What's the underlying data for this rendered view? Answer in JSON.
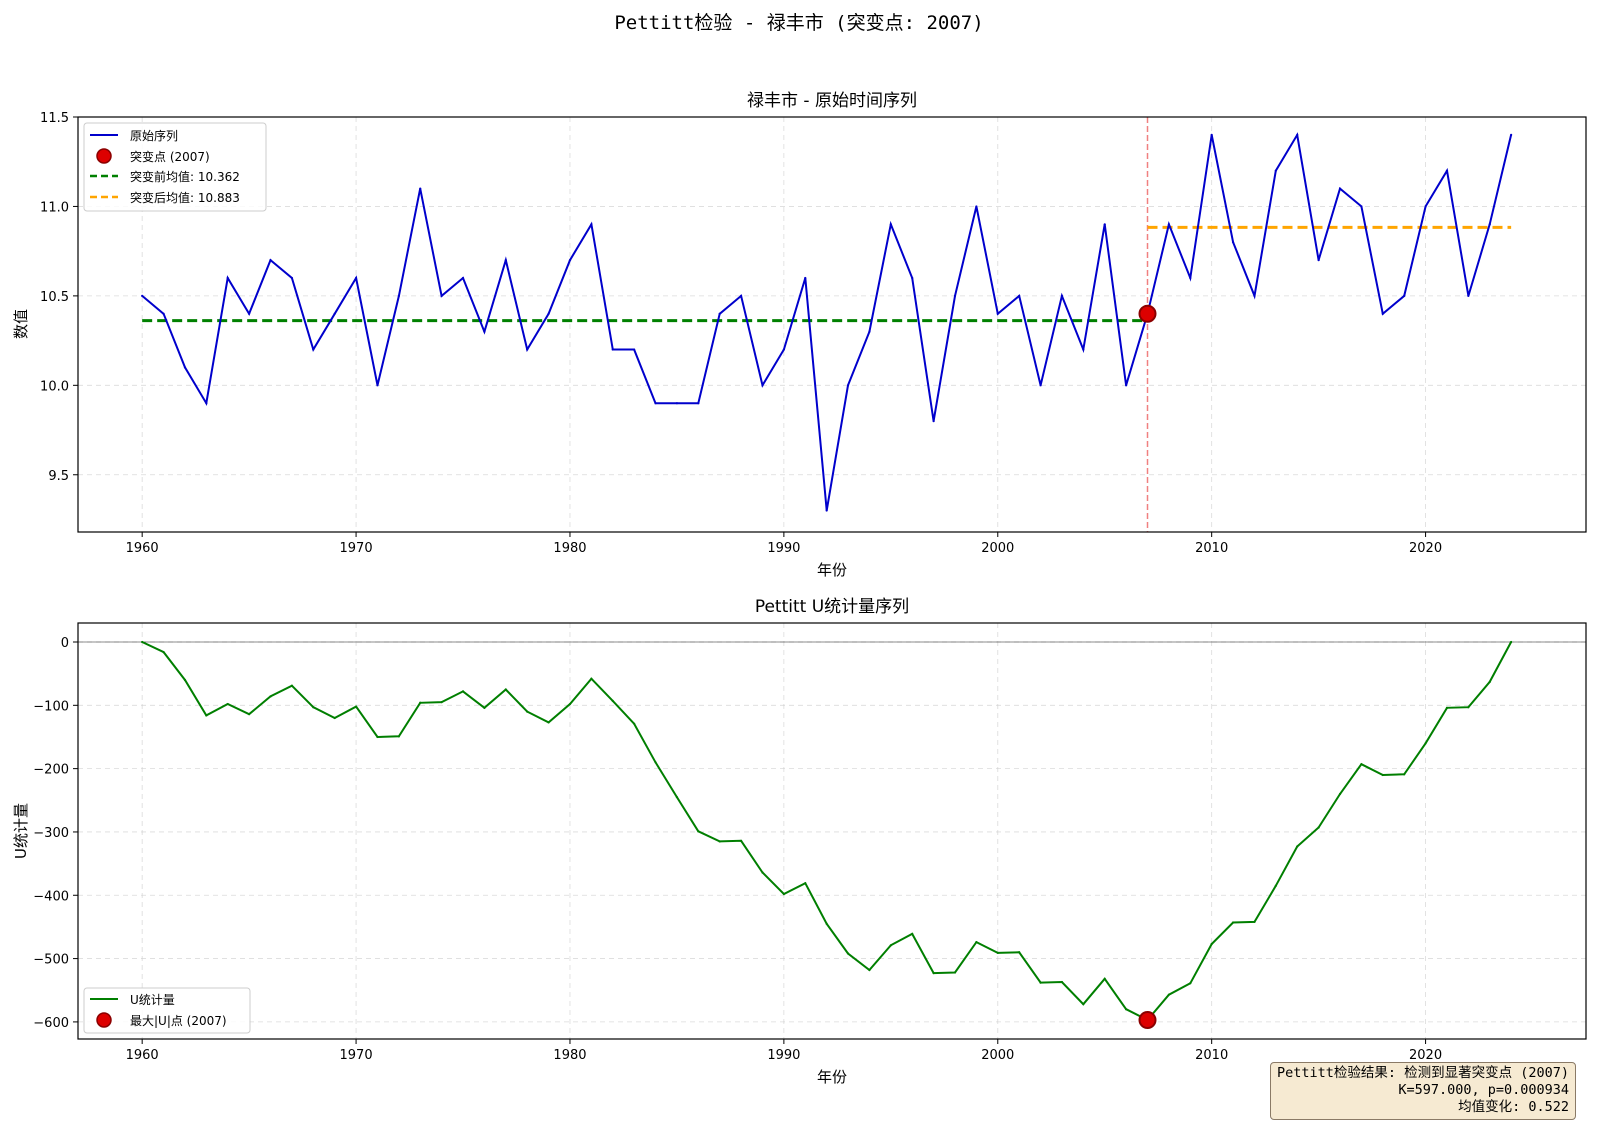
{
  "figure": {
    "suptitle": "Pettitt检验 - 禄丰市 (突变点: 2007)",
    "result_box": {
      "line1": "Pettitt检验结果: 检测到显著突变点 (2007)",
      "line2": "K=597.000, p=0.000934",
      "line3": "均值变化: 0.522"
    }
  },
  "colors": {
    "series": "#0000cc",
    "change_point": "#dd0000",
    "change_point_edge": "#8b0000",
    "mean_before": "#008000",
    "mean_after": "#ffa500",
    "vline": "#f08080",
    "u_line": "#007f00"
  },
  "chart_data": [
    {
      "type": "line",
      "title": "禄丰市 - 原始时间序列",
      "xlabel": "年份",
      "ylabel": "数值",
      "xlim": [
        1957,
        2027.5
      ],
      "ylim": [
        9.18,
        11.5
      ],
      "xticks": [
        1960,
        1970,
        1980,
        1990,
        2000,
        2010,
        2020
      ],
      "yticks": [
        9.5,
        10.0,
        10.5,
        11.0,
        11.5
      ],
      "ytick_labels": [
        "9.5",
        "10.0",
        "10.5",
        "11.0",
        "11.5"
      ],
      "grid": true,
      "legend_position": "upper left",
      "x": [
        1960,
        1961,
        1962,
        1963,
        1964,
        1965,
        1966,
        1967,
        1968,
        1969,
        1970,
        1971,
        1972,
        1973,
        1974,
        1975,
        1976,
        1977,
        1978,
        1979,
        1980,
        1981,
        1982,
        1983,
        1984,
        1985,
        1986,
        1987,
        1988,
        1989,
        1990,
        1991,
        1992,
        1993,
        1994,
        1995,
        1996,
        1997,
        1998,
        1999,
        2000,
        2001,
        2002,
        2003,
        2004,
        2005,
        2006,
        2007,
        2008,
        2009,
        2010,
        2011,
        2012,
        2013,
        2014,
        2015,
        2016,
        2017,
        2018,
        2019,
        2020,
        2021,
        2022,
        2023,
        2024
      ],
      "series": [
        {
          "name": "原始序列",
          "values": [
            10.5,
            10.4,
            10.1,
            9.9,
            10.6,
            10.4,
            10.7,
            10.6,
            10.2,
            10.4,
            10.6,
            10.0,
            10.5,
            11.1,
            10.5,
            10.6,
            10.3,
            10.7,
            10.2,
            10.4,
            10.7,
            10.9,
            10.2,
            10.2,
            9.9,
            9.9,
            9.9,
            10.4,
            10.5,
            10.0,
            10.2,
            10.6,
            9.3,
            10.0,
            10.3,
            10.9,
            10.6,
            9.8,
            10.5,
            11.0,
            10.4,
            10.5,
            10.0,
            10.5,
            10.2,
            10.9,
            10.0,
            10.4,
            10.9,
            10.6,
            11.4,
            10.8,
            10.5,
            11.2,
            11.4,
            10.7,
            11.1,
            11.0,
            10.4,
            10.5,
            11.0,
            11.2,
            10.5,
            10.9,
            11.4
          ]
        }
      ],
      "change_point": {
        "label": "突变点 (2007)",
        "x": 2007,
        "y": 10.4
      },
      "mean_before": {
        "label": "突变前均值: 10.362",
        "value": 10.362,
        "x_range": [
          1960,
          2007
        ]
      },
      "mean_after": {
        "label": "突变后均值: 10.883",
        "value": 10.883,
        "x_range": [
          2007,
          2024
        ]
      }
    },
    {
      "type": "line",
      "title": "Pettitt U统计量序列",
      "xlabel": "年份",
      "ylabel": "U统计量",
      "xlim": [
        1957,
        2027.5
      ],
      "ylim": [
        -627,
        30
      ],
      "xticks": [
        1960,
        1970,
        1980,
        1990,
        2000,
        2010,
        2020
      ],
      "yticks": [
        0,
        -100,
        -200,
        -300,
        -400,
        -500,
        -600
      ],
      "ytick_labels": [
        "0",
        "−100",
        "−200",
        "−300",
        "−400",
        "−500",
        "−600"
      ],
      "grid": true,
      "zero_line": true,
      "legend_position": "lower left",
      "x": [
        1960,
        1961,
        1962,
        1963,
        1964,
        1965,
        1966,
        1967,
        1968,
        1969,
        1970,
        1971,
        1972,
        1973,
        1974,
        1975,
        1976,
        1977,
        1978,
        1979,
        1980,
        1981,
        1982,
        1983,
        1984,
        1985,
        1986,
        1987,
        1988,
        1989,
        1990,
        1991,
        1992,
        1993,
        1994,
        1995,
        1996,
        1997,
        1998,
        1999,
        2000,
        2001,
        2002,
        2003,
        2004,
        2005,
        2006,
        2007,
        2008,
        2009,
        2010,
        2011,
        2012,
        2013,
        2014,
        2015,
        2016,
        2017,
        2018,
        2019,
        2020,
        2021,
        2022,
        2023,
        2024
      ],
      "series": [
        {
          "name": "U统计量",
          "values": [
            0,
            -16,
            -60,
            -116,
            -98,
            -114,
            -86,
            -69,
            -103,
            -120,
            -102,
            -150,
            -149,
            -96,
            -95,
            -78,
            -104,
            -75,
            -110,
            -127,
            -98,
            -58,
            -93,
            -129,
            -190,
            -245,
            -299,
            -315,
            -314,
            -364,
            -398,
            -381,
            -445,
            -492,
            -518,
            -479,
            -461,
            -523,
            -522,
            -474,
            -491,
            -490,
            -538,
            -537,
            -572,
            -532,
            -580,
            -597,
            -557,
            -539,
            -477,
            -443,
            -442,
            -385,
            -323,
            -293,
            -240,
            -193,
            -210,
            -209,
            -160,
            -104,
            -103,
            -63,
            0
          ]
        }
      ],
      "max_point": {
        "label": "最大|U|点 (2007)",
        "x": 2007,
        "y": -597
      }
    }
  ]
}
